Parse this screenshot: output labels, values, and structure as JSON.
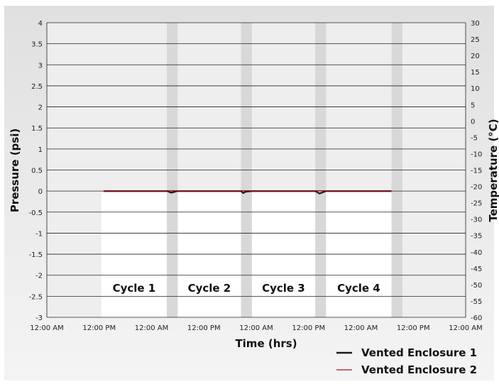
{
  "chart_data": {
    "type": "line",
    "xlabel": "Time (hrs)",
    "ylabel": "Pressure (psi)",
    "y2label": "Temperature (°C)",
    "x_ticks": [
      "12:00 AM",
      "12:00 PM",
      "12:00 AM",
      "12:00 PM",
      "12:00 AM",
      "12:00 PM",
      "12:00 AM",
      "12:00 PM",
      "12:00 AM"
    ],
    "x_range_hours": [
      0,
      96
    ],
    "ylim": [
      -3,
      4
    ],
    "y_ticks": [
      "4",
      "3.5",
      "3",
      "2.5",
      "2",
      "1.5",
      "1",
      "0.5",
      "0",
      "-0.5",
      "-1",
      "-1.5",
      "-2",
      "-2.5",
      "-3"
    ],
    "y2lim": [
      -60,
      30
    ],
    "y2_ticks": [
      "30",
      "25",
      "20",
      "15",
      "10",
      "5",
      "0",
      "-5",
      "-10",
      "-15",
      "-20",
      "-25",
      "-30",
      "-35",
      "-40",
      "-45",
      "-50",
      "-55",
      "-60"
    ],
    "temperature_profile_celsius": {
      "high": -22,
      "low": -60
    },
    "cycles": [
      {
        "label": "Cycle 1",
        "start_hour": 12.5,
        "end_hour": 27.5
      },
      {
        "label": "Cycle 2",
        "start_hour": 30.0,
        "end_hour": 44.5
      },
      {
        "label": "Cycle 3",
        "start_hour": 47.0,
        "end_hour": 61.5
      },
      {
        "label": "Cycle 4",
        "start_hour": 64.0,
        "end_hour": 79.0
      }
    ],
    "transitions": [
      {
        "start_hour": 27.5,
        "end_hour": 30.0
      },
      {
        "start_hour": 44.5,
        "end_hour": 47.0
      },
      {
        "start_hour": 61.5,
        "end_hour": 64.0
      },
      {
        "start_hour": 79.0,
        "end_hour": 81.5
      }
    ],
    "series": [
      {
        "name": "Vented Enclosure 1",
        "color": "#1a1a1a",
        "x": [
          13.0,
          20.0,
          27.5,
          28.5,
          30.0,
          37.0,
          44.5,
          45.0,
          45.5,
          47.0,
          54.0,
          61.5,
          62.5,
          64.0,
          72.0,
          79.0
        ],
        "y": [
          0.0,
          0.0,
          0.0,
          -0.04,
          0.0,
          0.0,
          0.0,
          -0.05,
          -0.02,
          0.0,
          0.0,
          0.0,
          -0.06,
          0.0,
          0.0,
          0.0
        ]
      },
      {
        "name": "Vented Enclosure 2",
        "color": "#b01020",
        "x": [
          13.0,
          20.0,
          27.5,
          30.0,
          37.0,
          44.5,
          47.0,
          54.0,
          61.5,
          64.0,
          72.0,
          79.0
        ],
        "y": [
          0.01,
          0.01,
          0.01,
          0.01,
          0.01,
          0.01,
          0.01,
          0.01,
          0.01,
          0.01,
          0.01,
          0.01
        ]
      }
    ],
    "legend": "bottom-right",
    "grid": true,
    "colors": {
      "background": "#e4e4e4",
      "plot_warm": "#eeeeee",
      "plot_cold": "#ffffff",
      "transition_band": "#d8d8d8",
      "grid": "#222222"
    }
  }
}
